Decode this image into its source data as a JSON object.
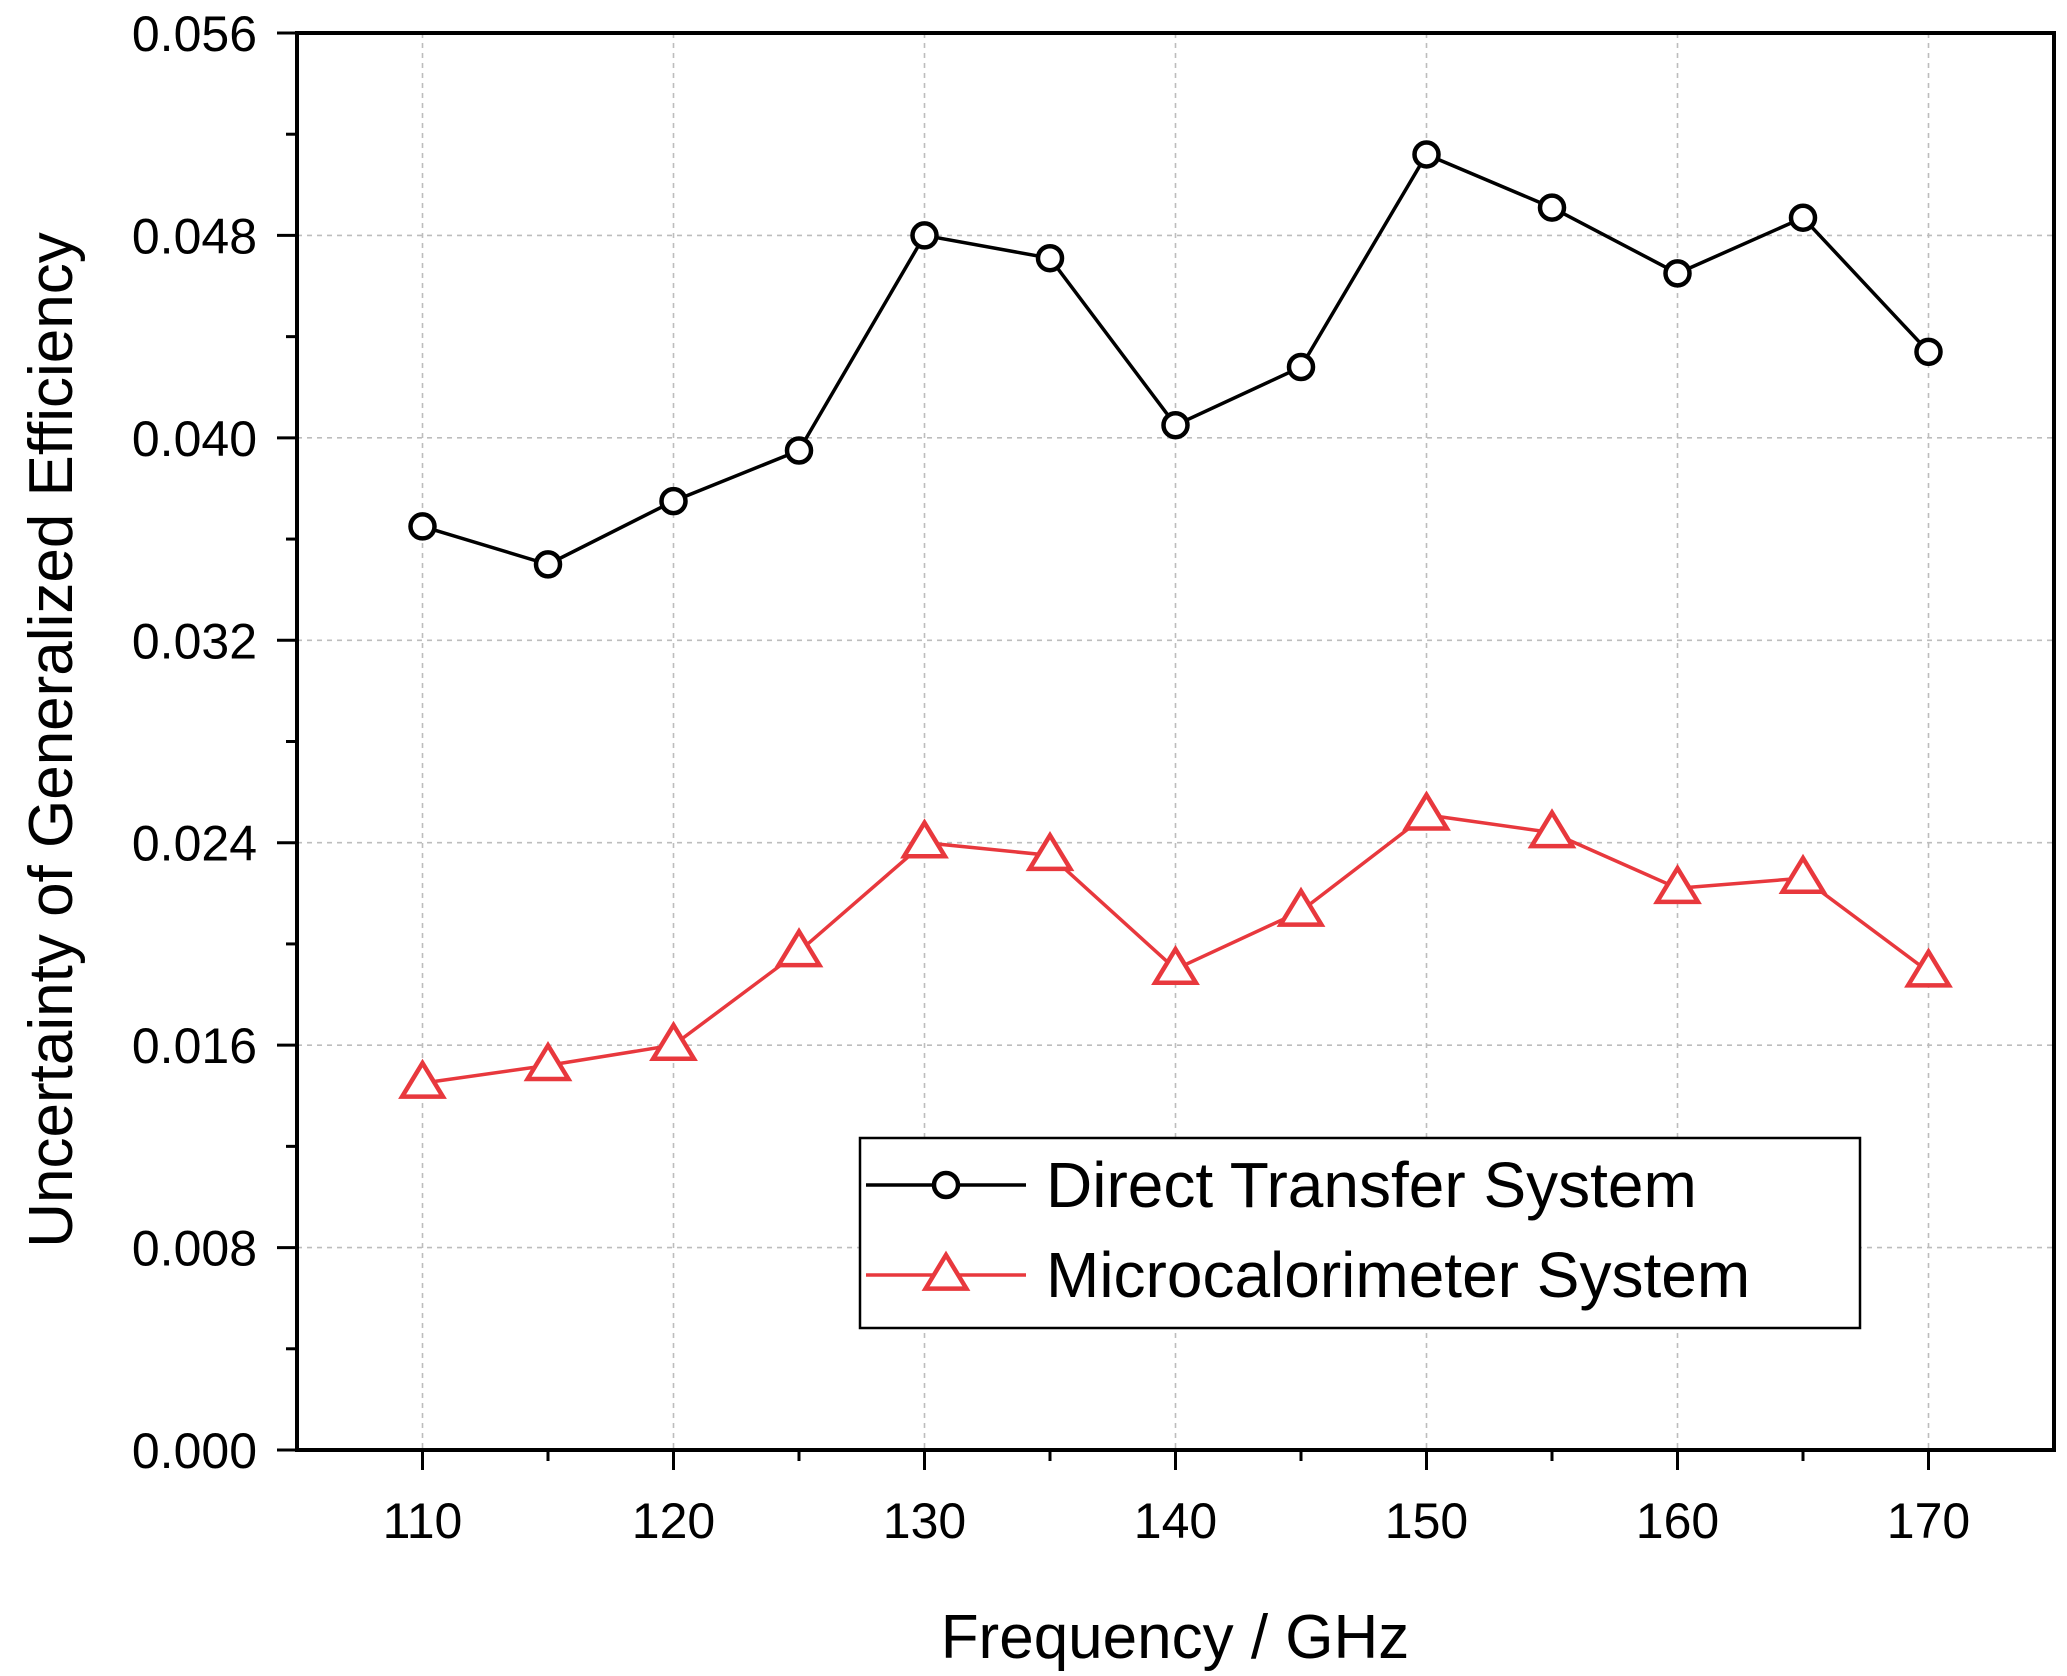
{
  "chart_data": {
    "type": "line",
    "title": "",
    "xlabel": "Frequency / GHz",
    "ylabel": "Uncertainty of Generalized Efficiency",
    "xlim": [
      105,
      175
    ],
    "ylim": [
      0.0,
      0.056
    ],
    "xticks": [
      110,
      120,
      130,
      140,
      150,
      160,
      170
    ],
    "xtick_labels": [
      "110",
      "120",
      "130",
      "140",
      "150",
      "160",
      "170"
    ],
    "yticks": [
      0.0,
      0.008,
      0.016,
      0.024,
      0.032,
      0.04,
      0.048,
      0.056
    ],
    "ytick_labels": [
      "0.000",
      "0.008",
      "0.016",
      "0.024",
      "0.032",
      "0.040",
      "0.048",
      "0.056"
    ],
    "grid": true,
    "legend_position": "lower-right",
    "x": [
      110,
      115,
      120,
      125,
      130,
      135,
      140,
      145,
      150,
      155,
      160,
      165,
      170
    ],
    "series": [
      {
        "name": "Direct Transfer System",
        "marker": "circle",
        "color": "#000000",
        "values": [
          0.0365,
          0.035,
          0.0375,
          0.0395,
          0.048,
          0.0471,
          0.0405,
          0.0428,
          0.0512,
          0.0491,
          0.0465,
          0.0487,
          0.0434
        ]
      },
      {
        "name": "Microcalorimeter System",
        "marker": "triangle",
        "color": "#e8383d",
        "values": [
          0.0145,
          0.0152,
          0.016,
          0.0197,
          0.024,
          0.0235,
          0.019,
          0.0213,
          0.0251,
          0.0244,
          0.0222,
          0.0226,
          0.0189
        ]
      }
    ]
  }
}
